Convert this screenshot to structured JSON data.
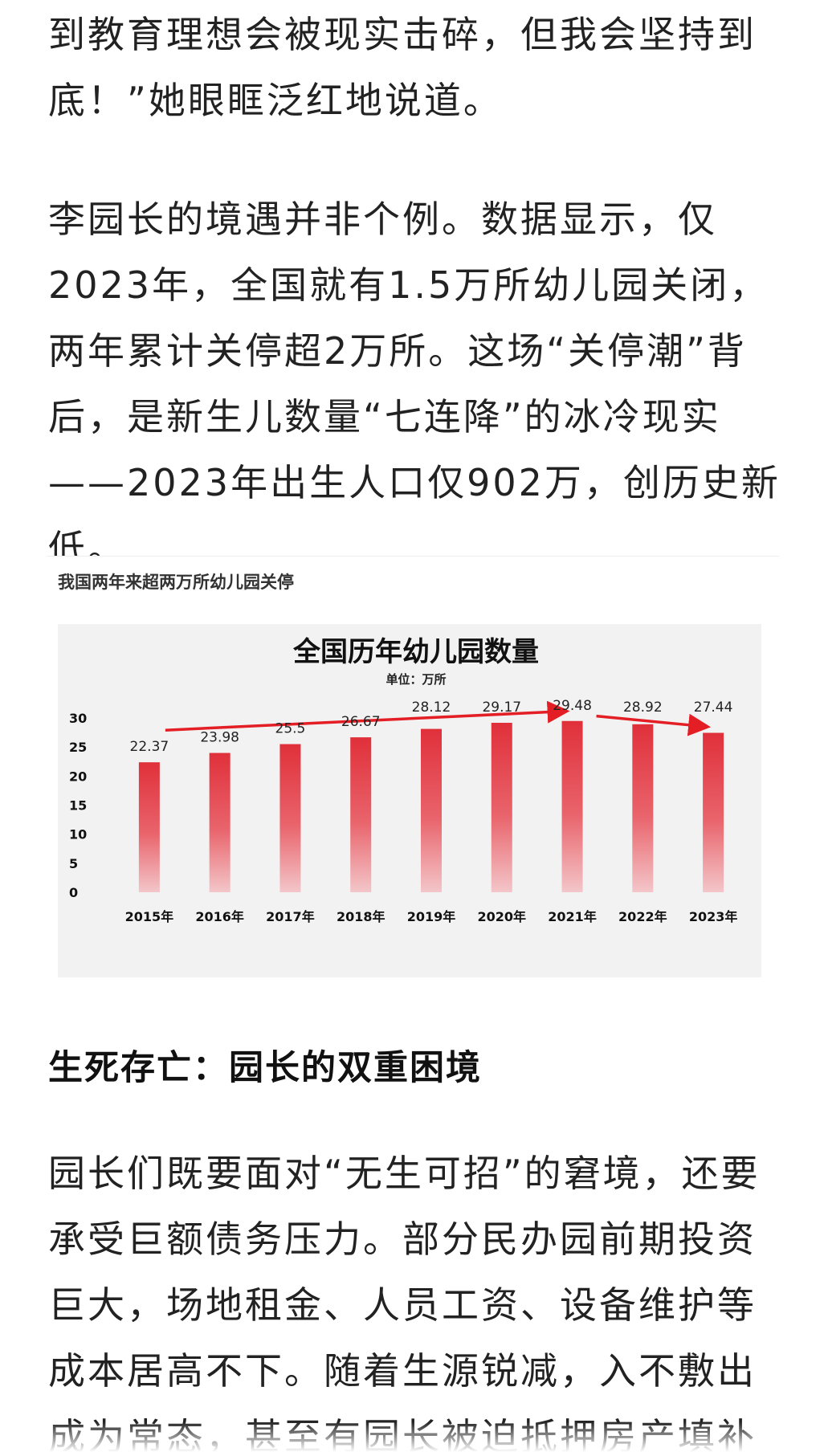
{
  "article": {
    "paragraph_1": "到教育理想会被现实击碎，但我会坚持到底！”她眼眶泛红地说道。",
    "paragraph_2": "李园长的境遇并非个例。数据显示，仅2023年，全国就有1.5万所幼儿园关闭，两年累计关停超2万所。这场“关停潮”背后，是新生儿数量“七连降”的冰冷现实——2023年出生人口仅902万，创历史新低。",
    "section_heading": "生死存亡：园长的双重困境",
    "paragraph_3": "园长们既要面对“无生可招”的窘境，还要承受巨额债务压力。部分民办园前期投资巨大，场地租金、人员工资、设备维护等成本居高不下。随着生源锐减，入不敷出成为常态，甚至有园长被迫抵押房产填补亏"
  },
  "figure": {
    "caption": "我国两年来超两万所幼儿园关停"
  },
  "chart_data": {
    "type": "bar",
    "title": "全国历年幼儿园数量",
    "subtitle": "单位：万所",
    "categories": [
      "2015年",
      "2016年",
      "2017年",
      "2018年",
      "2019年",
      "2020年",
      "2021年",
      "2022年",
      "2023年"
    ],
    "values": [
      22.37,
      23.98,
      25.5,
      26.67,
      28.12,
      29.17,
      29.48,
      28.92,
      27.44
    ],
    "value_labels": [
      "22.37",
      "23.98",
      "25.5",
      "26.67",
      "28.12",
      "29.17",
      "29.48",
      "28.92",
      "27.44"
    ],
    "yticks": [
      "0",
      "5",
      "10",
      "15",
      "20",
      "25",
      "30"
    ],
    "ylim": [
      0,
      30
    ],
    "grid": false,
    "legend": "none",
    "bar_color_top": "#e0303a",
    "bar_color_bottom": "#f3c6c9",
    "arrow_color": "#e31e24",
    "annotations": [
      "rising arrow 2015年→2021年",
      "falling arrow 2021年→2023年"
    ]
  },
  "colors": {
    "text": "#222222",
    "panel": "#f2f2f3",
    "accent": "#e31e24"
  }
}
